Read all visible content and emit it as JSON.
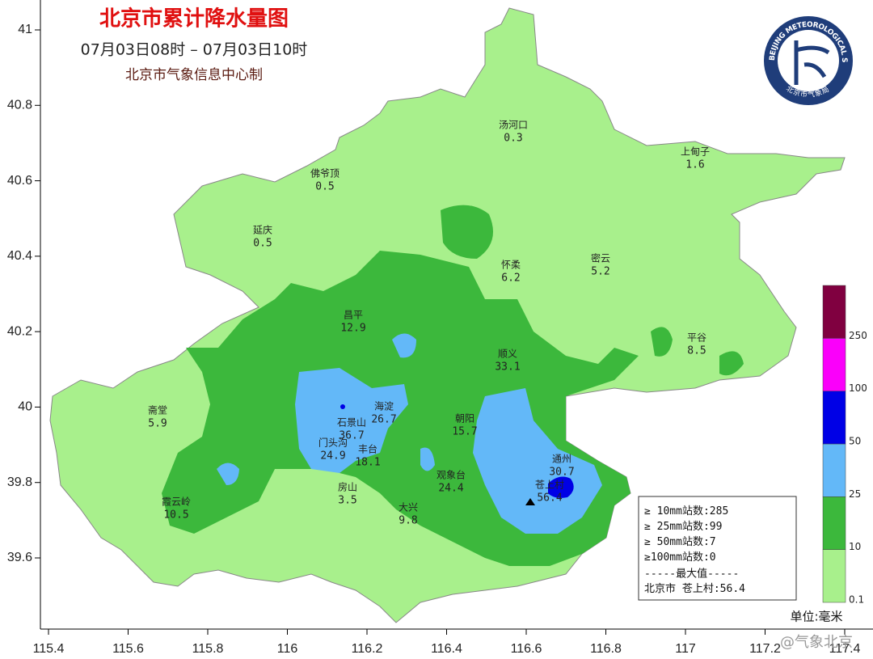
{
  "header": {
    "title": "北京市累计降水量图",
    "period": "07月03日08时 – 07月03日10时",
    "producer": "北京市气象信息中心制"
  },
  "logo": {
    "english": "BEIJING METEOROLOGICAL SERVICE",
    "chinese": "北京市气象局"
  },
  "axes": {
    "xlim": [
      115.38,
      117.48
    ],
    "ylim": [
      39.41,
      41.08
    ],
    "xticks": [
      115.4,
      115.6,
      115.8,
      116,
      116.2,
      116.4,
      116.6,
      116.8,
      117,
      117.2,
      117.4
    ],
    "yticks": [
      39.6,
      39.8,
      40,
      40.2,
      40.4,
      40.6,
      40.8,
      41
    ]
  },
  "stations": [
    {
      "name": "汤河口",
      "value": 0.3
    },
    {
      "name": "上甸子",
      "value": 1.6
    },
    {
      "name": "佛爷顶",
      "value": 0.5
    },
    {
      "name": "延庆",
      "value": 0.5
    },
    {
      "name": "怀柔",
      "value": 6.2
    },
    {
      "name": "密云",
      "value": 5.2
    },
    {
      "name": "昌平",
      "value": 12.9
    },
    {
      "name": "平谷",
      "value": 8.5
    },
    {
      "name": "顺义",
      "value": 33.1
    },
    {
      "name": "海淀",
      "value": 26.7
    },
    {
      "name": "石景山",
      "value": 36.7
    },
    {
      "name": "斋堂",
      "value": 5.9
    },
    {
      "name": "朝阳",
      "value": 15.7
    },
    {
      "name": "门头沟",
      "value": 24.9
    },
    {
      "name": "丰台",
      "value": 18.1
    },
    {
      "name": "通州",
      "value": 30.7
    },
    {
      "name": "观象台",
      "value": 24.4
    },
    {
      "name": "苍上村",
      "value": 56.4
    },
    {
      "name": "霞云岭",
      "value": 10.5
    },
    {
      "name": "房山",
      "value": 3.5
    },
    {
      "name": "大兴",
      "value": 9.8
    }
  ],
  "statistics": {
    "lines": [
      {
        "label": "≥ 10mm站数:",
        "value": 285
      },
      {
        "label": "≥ 25mm站数:",
        "value": 99
      },
      {
        "label": "≥ 50mm站数:",
        "value": 7
      },
      {
        "label": "≥100mm站数:",
        "value": 0
      }
    ],
    "max_heading": "-----最大值-----",
    "max_region": "北京市",
    "max_station": "苍上村:",
    "max_value": 56.4
  },
  "legend": {
    "levels": [
      0.1,
      10,
      25,
      50,
      100,
      250
    ],
    "colors": [
      "#a8f08c",
      "#3cb83c",
      "#63b8f8",
      "#0000e6",
      "#fa00fa",
      "#800040"
    ],
    "unit": "单位:毫米"
  },
  "watermark": "@气象北京"
}
